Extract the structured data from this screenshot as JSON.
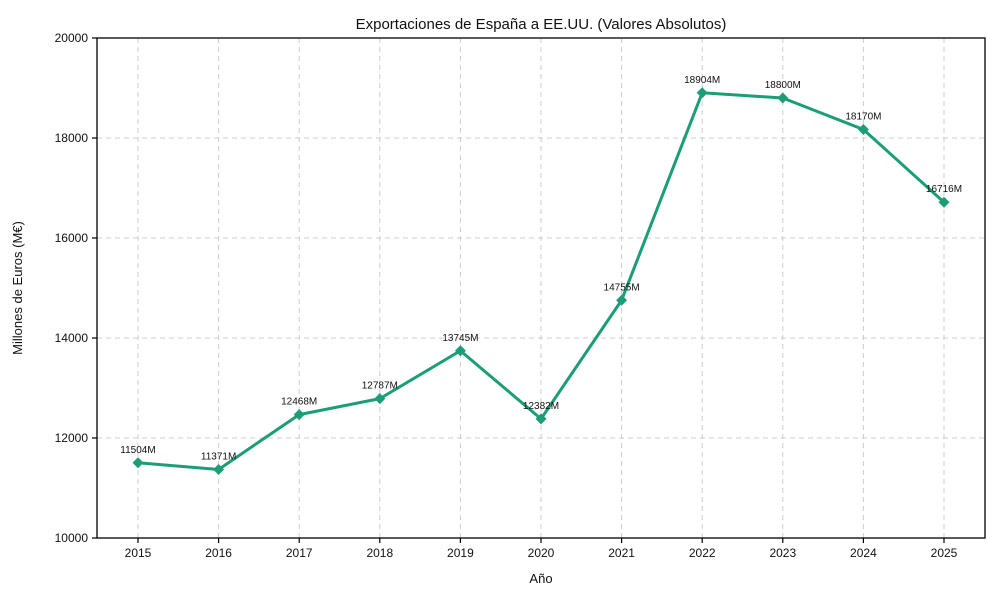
{
  "chart_data": {
    "type": "line",
    "title": "Exportaciones de España a EE.UU. (Valores Absolutos)",
    "xlabel": "Año",
    "ylabel": "Millones de Euros (M€)",
    "categories": [
      "2015",
      "2016",
      "2017",
      "2018",
      "2019",
      "2020",
      "2021",
      "2022",
      "2023",
      "2024",
      "2025"
    ],
    "series": [
      {
        "name": "Exportaciones",
        "values": [
          11504,
          11371,
          12468,
          12787,
          13745,
          12382,
          14755,
          18904,
          18800,
          18170,
          16716
        ],
        "point_labels": [
          "11504M",
          "11371M",
          "12468M",
          "12787M",
          "13745M",
          "12382M",
          "14755M",
          "18904M",
          "18800M",
          "18170M",
          "16716M"
        ]
      }
    ],
    "ylim": [
      10000,
      20000
    ],
    "yticks": [
      10000,
      12000,
      14000,
      16000,
      18000,
      20000
    ],
    "ytick_labels": [
      "10000",
      "12000",
      "14000",
      "16000",
      "18000",
      "20000"
    ],
    "grid": true,
    "legend": "none",
    "colors": {
      "line": "#1b9e77",
      "marker": "#1b9e77",
      "grid": "#cccccc",
      "spine": "#000000",
      "text": "#111111",
      "background": "#ffffff"
    },
    "marker_shape": "diamond"
  }
}
